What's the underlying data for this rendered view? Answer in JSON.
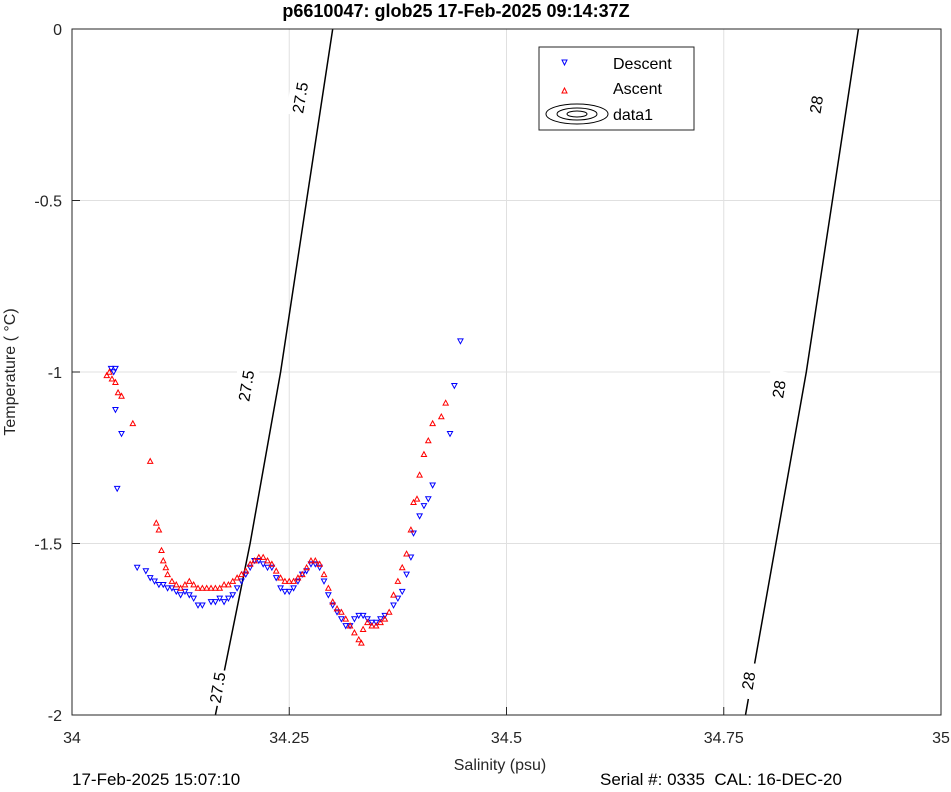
{
  "chart_data": {
    "type": "scatter",
    "title": "p6610047: glob25 17-Feb-2025 09:14:37Z",
    "xlabel": "Salinity (psu)",
    "ylabel": "Temperature (   °C)",
    "xlim": [
      34,
      35
    ],
    "ylim": [
      -2,
      0
    ],
    "xticks": [
      34,
      34.25,
      34.5,
      34.75,
      35
    ],
    "xtick_labels": [
      "34",
      "34.25",
      "34.5",
      "34.75",
      "35"
    ],
    "yticks": [
      -2,
      -1.5,
      -1,
      -0.5,
      0
    ],
    "ytick_labels": [
      "-2",
      "-1.5",
      "-1",
      "-0.5",
      "0"
    ],
    "grid": true,
    "legend_position": "top-center",
    "legend": [
      "Descent",
      "Ascent",
      "data1"
    ],
    "colors": {
      "descent": "#0000ff",
      "ascent": "#ff0000",
      "contour": "#000000",
      "grid": "#e0e0e0"
    },
    "series": [
      {
        "name": "Descent",
        "marker": "triangle-down",
        "points": [
          [
            34.045,
            -0.99
          ],
          [
            34.05,
            -0.99
          ],
          [
            34.048,
            -1.0
          ],
          [
            34.05,
            -1.11
          ],
          [
            34.052,
            -1.34
          ],
          [
            34.057,
            -1.18
          ],
          [
            34.075,
            -1.57
          ],
          [
            34.085,
            -1.58
          ],
          [
            34.09,
            -1.6
          ],
          [
            34.095,
            -1.61
          ],
          [
            34.1,
            -1.62
          ],
          [
            34.105,
            -1.62
          ],
          [
            34.11,
            -1.63
          ],
          [
            34.115,
            -1.63
          ],
          [
            34.12,
            -1.64
          ],
          [
            34.125,
            -1.65
          ],
          [
            34.13,
            -1.64
          ],
          [
            34.135,
            -1.65
          ],
          [
            34.14,
            -1.66
          ],
          [
            34.145,
            -1.68
          ],
          [
            34.15,
            -1.68
          ],
          [
            34.16,
            -1.67
          ],
          [
            34.165,
            -1.67
          ],
          [
            34.17,
            -1.66
          ],
          [
            34.175,
            -1.67
          ],
          [
            34.18,
            -1.66
          ],
          [
            34.185,
            -1.65
          ],
          [
            34.19,
            -1.63
          ],
          [
            34.195,
            -1.61
          ],
          [
            34.2,
            -1.59
          ],
          [
            34.205,
            -1.57
          ],
          [
            34.21,
            -1.55
          ],
          [
            34.215,
            -1.55
          ],
          [
            34.22,
            -1.56
          ],
          [
            34.225,
            -1.57
          ],
          [
            34.23,
            -1.57
          ],
          [
            34.235,
            -1.6
          ],
          [
            34.24,
            -1.63
          ],
          [
            34.245,
            -1.64
          ],
          [
            34.25,
            -1.64
          ],
          [
            34.255,
            -1.63
          ],
          [
            34.26,
            -1.61
          ],
          [
            34.265,
            -1.59
          ],
          [
            34.27,
            -1.58
          ],
          [
            34.275,
            -1.56
          ],
          [
            34.28,
            -1.56
          ],
          [
            34.285,
            -1.57
          ],
          [
            34.29,
            -1.61
          ],
          [
            34.295,
            -1.65
          ],
          [
            34.3,
            -1.68
          ],
          [
            34.305,
            -1.7
          ],
          [
            34.31,
            -1.72
          ],
          [
            34.315,
            -1.74
          ],
          [
            34.32,
            -1.74
          ],
          [
            34.325,
            -1.72
          ],
          [
            34.33,
            -1.71
          ],
          [
            34.335,
            -1.71
          ],
          [
            34.34,
            -1.72
          ],
          [
            34.345,
            -1.73
          ],
          [
            34.35,
            -1.73
          ],
          [
            34.355,
            -1.72
          ],
          [
            34.36,
            -1.71
          ],
          [
            34.37,
            -1.68
          ],
          [
            34.375,
            -1.66
          ],
          [
            34.38,
            -1.64
          ],
          [
            34.385,
            -1.59
          ],
          [
            34.39,
            -1.54
          ],
          [
            34.393,
            -1.47
          ],
          [
            34.4,
            -1.42
          ],
          [
            34.405,
            -1.39
          ],
          [
            34.41,
            -1.37
          ],
          [
            34.415,
            -1.33
          ],
          [
            34.435,
            -1.18
          ],
          [
            34.44,
            -1.04
          ],
          [
            34.447,
            -0.91
          ]
        ]
      },
      {
        "name": "Ascent",
        "marker": "triangle-up",
        "points": [
          [
            34.04,
            -1.01
          ],
          [
            34.043,
            -1.0
          ],
          [
            34.046,
            -1.02
          ],
          [
            34.05,
            -1.03
          ],
          [
            34.053,
            -1.06
          ],
          [
            34.057,
            -1.07
          ],
          [
            34.07,
            -1.15
          ],
          [
            34.09,
            -1.26
          ],
          [
            34.097,
            -1.44
          ],
          [
            34.1,
            -1.46
          ],
          [
            34.103,
            -1.52
          ],
          [
            34.105,
            -1.55
          ],
          [
            34.108,
            -1.57
          ],
          [
            34.11,
            -1.59
          ],
          [
            34.115,
            -1.61
          ],
          [
            34.12,
            -1.62
          ],
          [
            34.125,
            -1.63
          ],
          [
            34.13,
            -1.62
          ],
          [
            34.135,
            -1.61
          ],
          [
            34.14,
            -1.62
          ],
          [
            34.145,
            -1.63
          ],
          [
            34.15,
            -1.63
          ],
          [
            34.155,
            -1.63
          ],
          [
            34.16,
            -1.63
          ],
          [
            34.165,
            -1.63
          ],
          [
            34.17,
            -1.63
          ],
          [
            34.175,
            -1.62
          ],
          [
            34.18,
            -1.62
          ],
          [
            34.185,
            -1.61
          ],
          [
            34.19,
            -1.6
          ],
          [
            34.195,
            -1.59
          ],
          [
            34.2,
            -1.58
          ],
          [
            34.205,
            -1.56
          ],
          [
            34.21,
            -1.55
          ],
          [
            34.215,
            -1.54
          ],
          [
            34.22,
            -1.54
          ],
          [
            34.225,
            -1.55
          ],
          [
            34.23,
            -1.56
          ],
          [
            34.235,
            -1.58
          ],
          [
            34.24,
            -1.6
          ],
          [
            34.245,
            -1.61
          ],
          [
            34.25,
            -1.61
          ],
          [
            34.255,
            -1.61
          ],
          [
            34.26,
            -1.6
          ],
          [
            34.265,
            -1.59
          ],
          [
            34.27,
            -1.57
          ],
          [
            34.275,
            -1.55
          ],
          [
            34.28,
            -1.55
          ],
          [
            34.285,
            -1.56
          ],
          [
            34.29,
            -1.59
          ],
          [
            34.295,
            -1.63
          ],
          [
            34.3,
            -1.67
          ],
          [
            34.305,
            -1.69
          ],
          [
            34.31,
            -1.7
          ],
          [
            34.315,
            -1.72
          ],
          [
            34.32,
            -1.74
          ],
          [
            34.325,
            -1.76
          ],
          [
            34.33,
            -1.78
          ],
          [
            34.333,
            -1.79
          ],
          [
            34.335,
            -1.75
          ],
          [
            34.34,
            -1.73
          ],
          [
            34.345,
            -1.74
          ],
          [
            34.35,
            -1.74
          ],
          [
            34.355,
            -1.73
          ],
          [
            34.36,
            -1.72
          ],
          [
            34.365,
            -1.7
          ],
          [
            34.37,
            -1.65
          ],
          [
            34.375,
            -1.61
          ],
          [
            34.38,
            -1.57
          ],
          [
            34.385,
            -1.53
          ],
          [
            34.39,
            -1.46
          ],
          [
            34.393,
            -1.38
          ],
          [
            34.397,
            -1.37
          ],
          [
            34.4,
            -1.3
          ],
          [
            34.405,
            -1.24
          ],
          [
            34.41,
            -1.2
          ],
          [
            34.415,
            -1.15
          ],
          [
            34.425,
            -1.13
          ],
          [
            34.43,
            -1.09
          ]
        ]
      }
    ],
    "contours": [
      {
        "level": "27.5",
        "points": [
          [
            34.165,
            -2.0
          ],
          [
            34.205,
            -1.5
          ],
          [
            34.24,
            -1.0
          ],
          [
            34.27,
            -0.5
          ],
          [
            34.3,
            0.0
          ]
        ],
        "labels": [
          [
            34.167,
            -1.92
          ],
          [
            34.2,
            -1.04
          ],
          [
            34.262,
            -0.2
          ]
        ]
      },
      {
        "level": "28",
        "points": [
          [
            34.775,
            -2.0
          ],
          [
            34.81,
            -1.5
          ],
          [
            34.845,
            -1.0
          ],
          [
            34.875,
            -0.5
          ],
          [
            34.905,
            0.0
          ]
        ],
        "labels": [
          [
            34.778,
            -1.9
          ],
          [
            34.813,
            -1.05
          ],
          [
            34.856,
            -0.22
          ]
        ]
      }
    ]
  },
  "footer": {
    "left": "17-Feb-2025 15:07:10",
    "right": "Serial #: 0335  CAL: 16-DEC-20"
  }
}
